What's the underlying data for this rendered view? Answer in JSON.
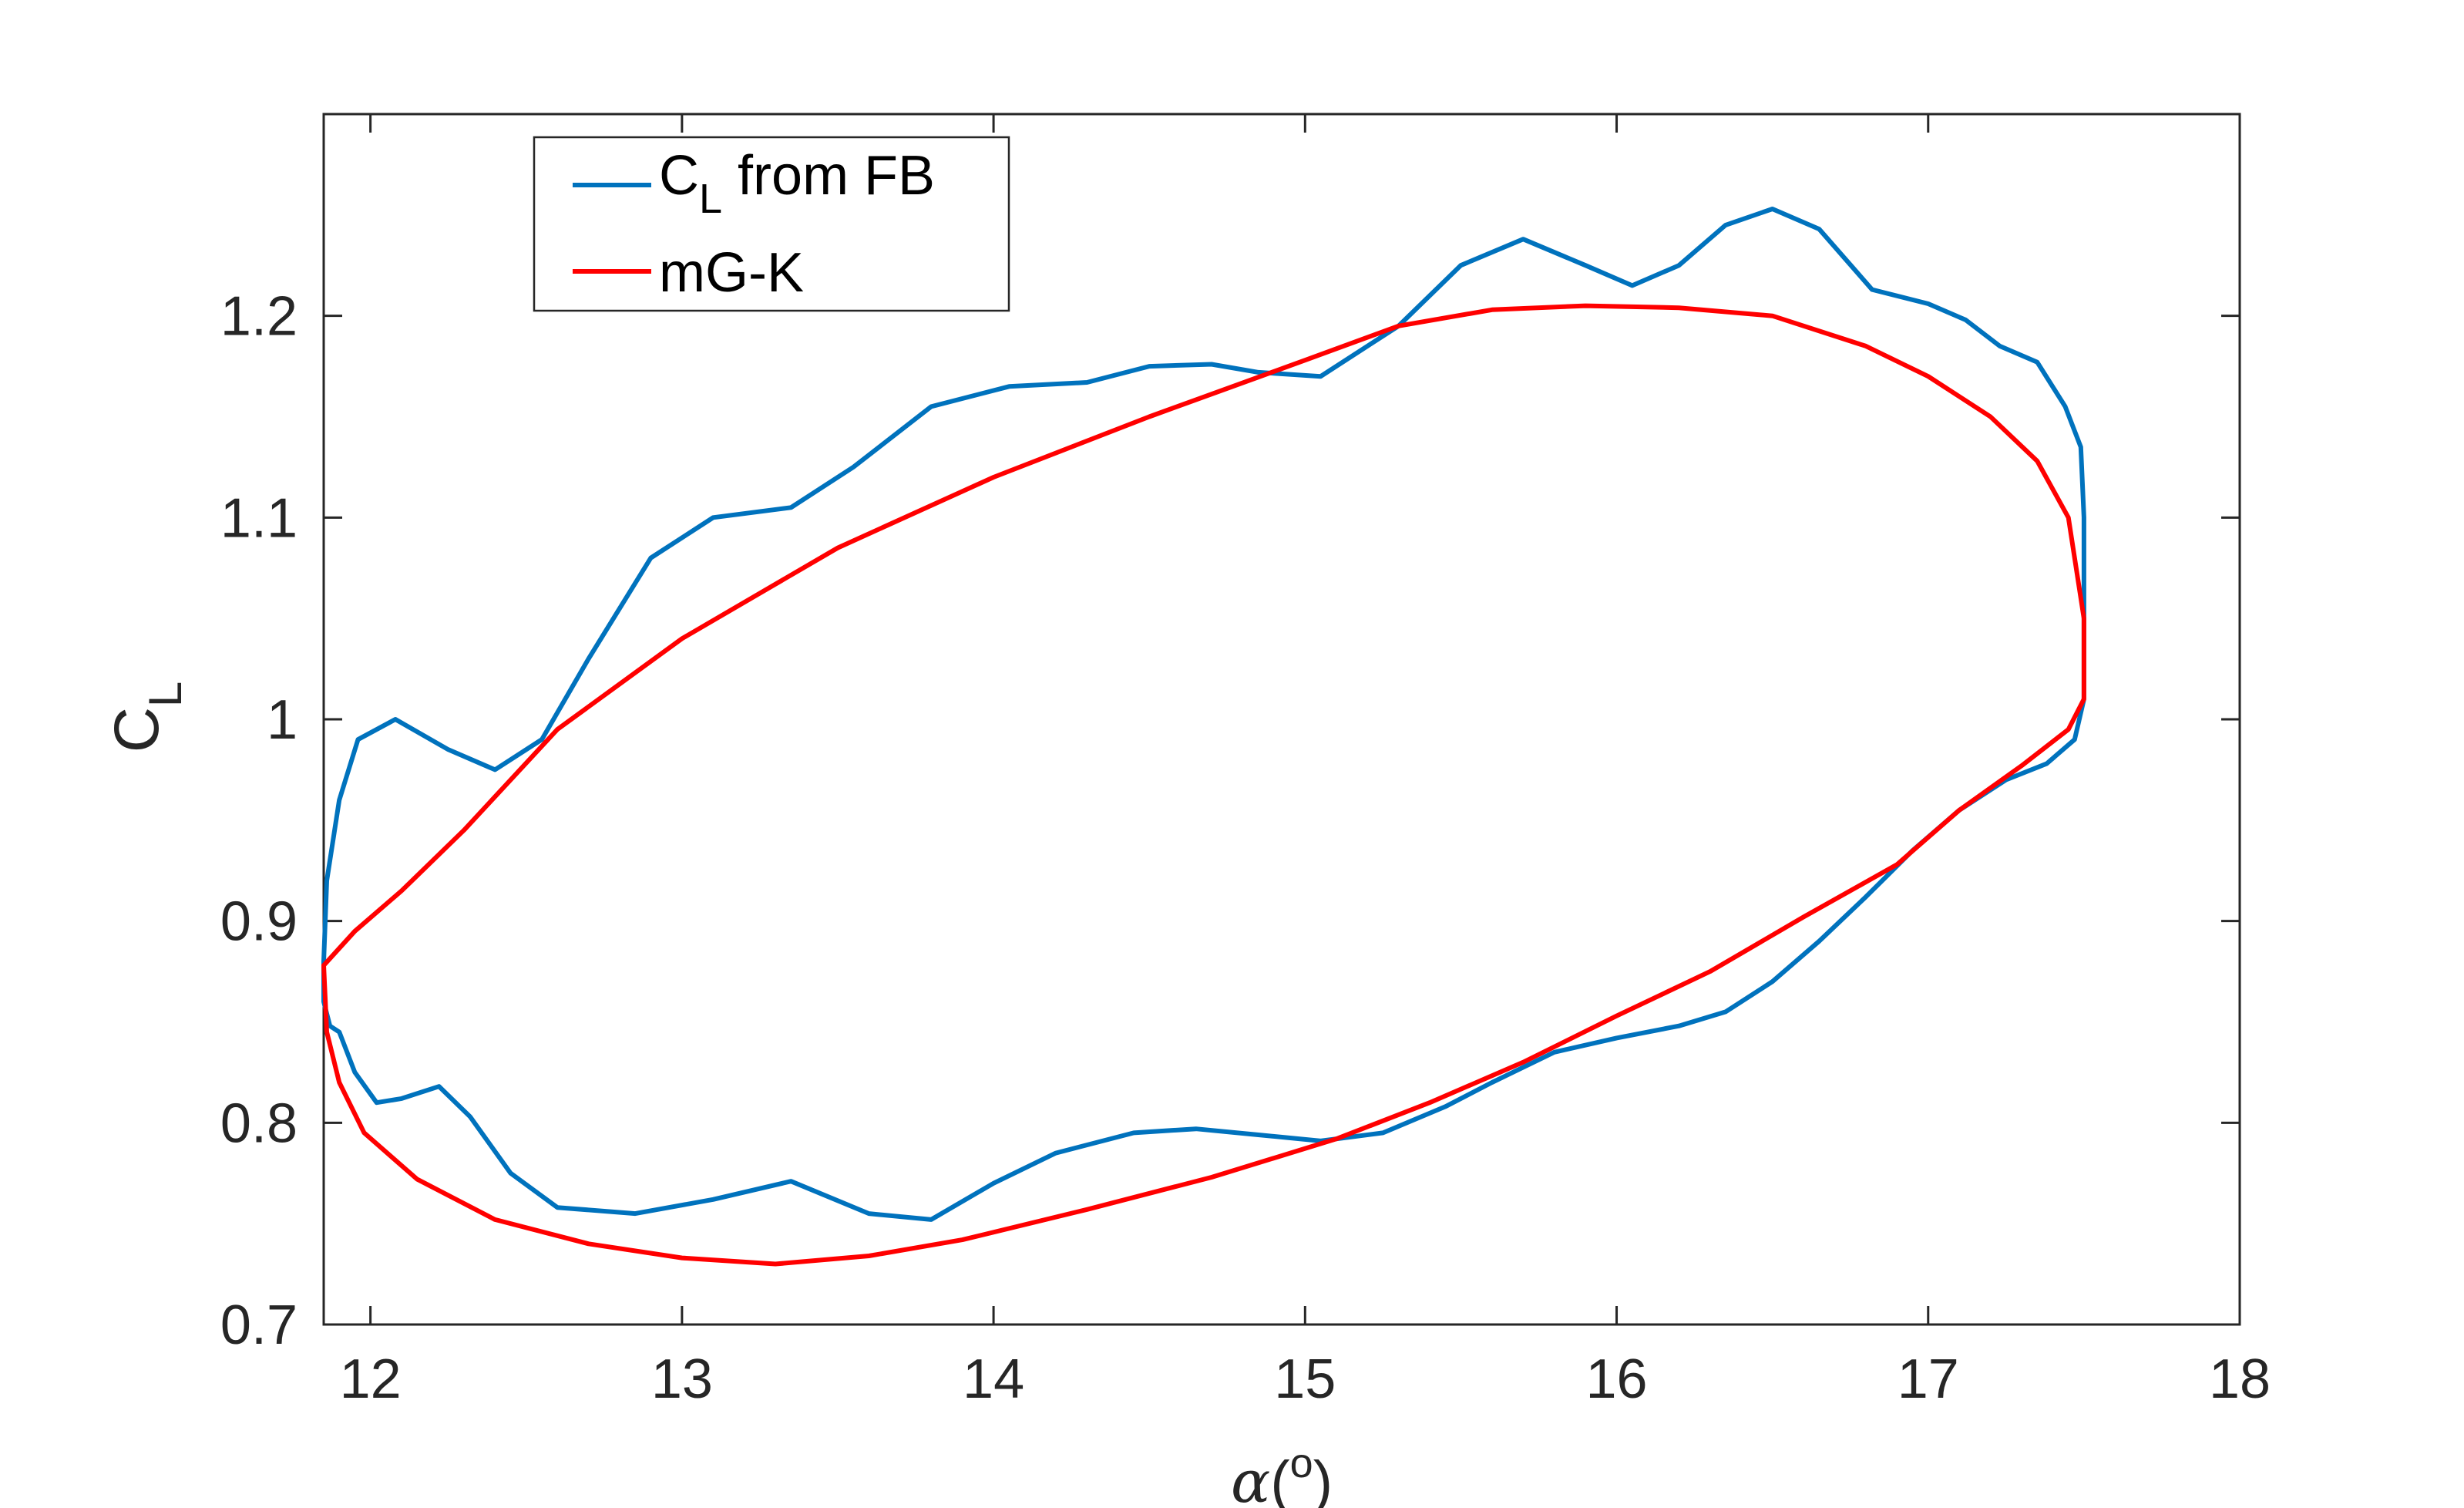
{
  "chart_data": {
    "type": "line",
    "xlabel_symbol": "α",
    "xlabel_unit": "o",
    "ylabel_base": "C",
    "ylabel_sub": "L",
    "xlim": [
      11.85,
      18
    ],
    "ylim": [
      0.7,
      1.3
    ],
    "xticks": [
      12,
      13,
      14,
      15,
      16,
      17,
      18
    ],
    "yticks": [
      0.7,
      0.8,
      0.9,
      1.0,
      1.1,
      1.2
    ],
    "ytick_labels": [
      "0.7",
      "0.8",
      "0.9",
      "1",
      "1.1",
      "1.2"
    ],
    "grid": false,
    "legend_position": "top-left",
    "series": [
      {
        "name": "C_L from FB",
        "legend_base": "C",
        "legend_sub": "L",
        "legend_rest": " from FB",
        "color": "#0072BD",
        "points": [
          [
            11.85,
            0.88
          ],
          [
            11.86,
            0.92
          ],
          [
            11.9,
            0.96
          ],
          [
            11.96,
            0.99
          ],
          [
            12.08,
            1.0
          ],
          [
            12.25,
            0.985
          ],
          [
            12.4,
            0.975
          ],
          [
            12.55,
            0.99
          ],
          [
            12.7,
            1.03
          ],
          [
            12.9,
            1.08
          ],
          [
            13.1,
            1.1
          ],
          [
            13.35,
            1.105
          ],
          [
            13.55,
            1.125
          ],
          [
            13.8,
            1.155
          ],
          [
            14.05,
            1.165
          ],
          [
            14.3,
            1.167
          ],
          [
            14.5,
            1.175
          ],
          [
            14.7,
            1.176
          ],
          [
            14.85,
            1.172
          ],
          [
            15.05,
            1.17
          ],
          [
            15.3,
            1.195
          ],
          [
            15.5,
            1.225
          ],
          [
            15.7,
            1.238
          ],
          [
            15.9,
            1.225
          ],
          [
            16.05,
            1.215
          ],
          [
            16.2,
            1.225
          ],
          [
            16.35,
            1.245
          ],
          [
            16.5,
            1.253
          ],
          [
            16.65,
            1.243
          ],
          [
            16.82,
            1.213
          ],
          [
            17.0,
            1.206
          ],
          [
            17.12,
            1.198
          ],
          [
            17.23,
            1.185
          ],
          [
            17.35,
            1.177
          ],
          [
            17.44,
            1.155
          ],
          [
            17.49,
            1.135
          ],
          [
            17.5,
            1.1
          ],
          [
            17.5,
            1.05
          ],
          [
            17.5,
            1.01
          ],
          [
            17.47,
            0.99
          ],
          [
            17.38,
            0.978
          ],
          [
            17.25,
            0.97
          ],
          [
            17.1,
            0.955
          ],
          [
            16.95,
            0.935
          ],
          [
            16.8,
            0.912
          ],
          [
            16.65,
            0.89
          ],
          [
            16.5,
            0.87
          ],
          [
            16.35,
            0.855
          ],
          [
            16.2,
            0.848
          ],
          [
            16.0,
            0.842
          ],
          [
            15.8,
            0.835
          ],
          [
            15.6,
            0.82
          ],
          [
            15.45,
            0.808
          ],
          [
            15.25,
            0.795
          ],
          [
            15.05,
            0.791
          ],
          [
            14.85,
            0.794
          ],
          [
            14.65,
            0.797
          ],
          [
            14.45,
            0.795
          ],
          [
            14.2,
            0.785
          ],
          [
            14.0,
            0.77
          ],
          [
            13.8,
            0.752
          ],
          [
            13.6,
            0.755
          ],
          [
            13.35,
            0.771
          ],
          [
            13.1,
            0.762
          ],
          [
            12.85,
            0.755
          ],
          [
            12.6,
            0.758
          ],
          [
            12.45,
            0.775
          ],
          [
            12.32,
            0.803
          ],
          [
            12.22,
            0.818
          ],
          [
            12.1,
            0.812
          ],
          [
            12.02,
            0.81
          ],
          [
            11.95,
            0.825
          ],
          [
            11.9,
            0.845
          ],
          [
            11.87,
            0.848
          ],
          [
            11.85,
            0.86
          ],
          [
            11.85,
            0.88
          ]
        ]
      },
      {
        "name": "mG-K",
        "legend_base": "mG-K",
        "legend_sub": "",
        "legend_rest": "",
        "color": "#FF0000",
        "points": [
          [
            11.85,
            0.878
          ],
          [
            11.95,
            0.895
          ],
          [
            12.1,
            0.915
          ],
          [
            12.3,
            0.945
          ],
          [
            12.6,
            0.995
          ],
          [
            13.0,
            1.04
          ],
          [
            13.5,
            1.085
          ],
          [
            14.0,
            1.12
          ],
          [
            14.5,
            1.15
          ],
          [
            15.0,
            1.178
          ],
          [
            15.3,
            1.195
          ],
          [
            15.6,
            1.203
          ],
          [
            15.9,
            1.205
          ],
          [
            16.2,
            1.204
          ],
          [
            16.5,
            1.2
          ],
          [
            16.8,
            1.185
          ],
          [
            17.0,
            1.17
          ],
          [
            17.2,
            1.15
          ],
          [
            17.35,
            1.128
          ],
          [
            17.45,
            1.1
          ],
          [
            17.5,
            1.05
          ],
          [
            17.5,
            1.01
          ],
          [
            17.45,
            0.995
          ],
          [
            17.3,
            0.977
          ],
          [
            17.1,
            0.955
          ],
          [
            16.9,
            0.928
          ],
          [
            16.6,
            0.902
          ],
          [
            16.3,
            0.875
          ],
          [
            16.0,
            0.853
          ],
          [
            15.7,
            0.83
          ],
          [
            15.4,
            0.81
          ],
          [
            15.1,
            0.792
          ],
          [
            14.7,
            0.773
          ],
          [
            14.3,
            0.757
          ],
          [
            13.9,
            0.742
          ],
          [
            13.6,
            0.734
          ],
          [
            13.3,
            0.73
          ],
          [
            13.0,
            0.733
          ],
          [
            12.7,
            0.74
          ],
          [
            12.4,
            0.752
          ],
          [
            12.15,
            0.772
          ],
          [
            11.98,
            0.795
          ],
          [
            11.9,
            0.82
          ],
          [
            11.86,
            0.845
          ],
          [
            11.85,
            0.878
          ]
        ]
      }
    ]
  }
}
